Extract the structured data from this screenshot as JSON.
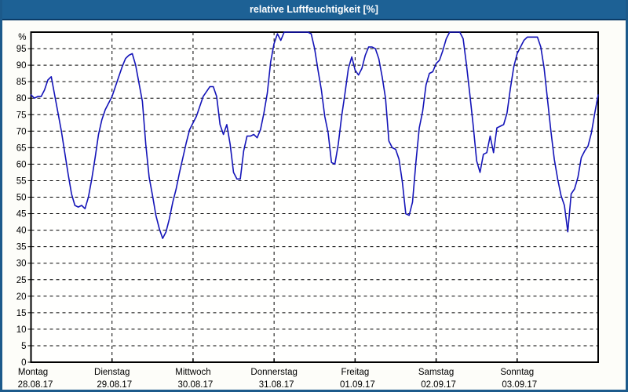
{
  "window_title": "relative Luftfeuchtigkeit [%]",
  "colors": {
    "titlebar_bg": "#1d6195",
    "titlebar_text": "#ffffff",
    "window_border": "#1c5a8b",
    "plot_bg": "#fffffe",
    "grid": "#000000",
    "line": "#1414b8"
  },
  "chart_data": {
    "type": "line",
    "title": "relative Luftfeuchtigkeit [%]",
    "ylabel": "%",
    "ylim": [
      0,
      100
    ],
    "yticks": [
      0,
      5,
      10,
      15,
      20,
      25,
      30,
      35,
      40,
      45,
      50,
      55,
      60,
      65,
      70,
      75,
      80,
      85,
      90,
      95
    ],
    "grid": "dashed",
    "legend": "none",
    "x_unit": "hours",
    "sample_interval_hours": 1,
    "days": [
      {
        "name": "Montag",
        "date": "28.08.17"
      },
      {
        "name": "Dienstag",
        "date": "29.08.17"
      },
      {
        "name": "Mittwoch",
        "date": "30.08.17"
      },
      {
        "name": "Donnerstag",
        "date": "31.08.17"
      },
      {
        "name": "Freitag",
        "date": "01.09.17"
      },
      {
        "name": "Samstag",
        "date": "02.09.17"
      },
      {
        "name": "Sonntag",
        "date": "03.09.17"
      }
    ],
    "values": [
      81,
      80,
      80.5,
      80.5,
      82.5,
      85.5,
      86.5,
      81,
      75.5,
      70,
      63.5,
      57,
      51,
      47.5,
      47,
      47.5,
      46.5,
      50,
      55.5,
      62,
      69,
      73.5,
      76.5,
      78.5,
      80.5,
      83.5,
      86.5,
      89.5,
      92,
      93,
      93.5,
      90,
      84.5,
      79,
      66,
      56,
      50.5,
      44.5,
      40.5,
      37.5,
      39.5,
      43.5,
      48.5,
      52.5,
      57.5,
      62,
      66.5,
      70.5,
      72.5,
      74.5,
      77.5,
      80.5,
      82,
      83.5,
      83.5,
      80.5,
      72,
      69,
      72,
      66,
      57.5,
      55.5,
      55.5,
      64,
      68.5,
      68.5,
      69,
      68,
      70.5,
      75.5,
      81.5,
      91,
      96.5,
      99.5,
      97.5,
      100,
      100,
      100,
      100,
      100,
      100,
      100,
      100,
      99.5,
      95,
      88.5,
      82.5,
      74.5,
      69.5,
      60.5,
      60,
      66,
      74.5,
      81.5,
      89,
      92.5,
      88.5,
      87,
      89,
      93,
      95.5,
      95.5,
      95,
      92,
      86.5,
      80,
      67,
      65,
      64.5,
      61.5,
      54.5,
      45,
      44.5,
      48.5,
      60.5,
      71,
      76,
      84,
      87.5,
      88,
      90.5,
      91.5,
      94.5,
      98,
      100,
      100,
      100,
      100,
      98,
      90,
      81,
      71.5,
      61,
      57.5,
      63,
      63.5,
      68.5,
      63.5,
      71,
      71.5,
      72,
      75.5,
      83,
      89.5,
      93.5,
      95.5,
      97.5,
      98.5,
      98.5,
      98.5,
      98.5,
      95.5,
      89,
      79.5,
      70,
      61.5,
      55.5,
      50.5,
      47.5,
      39.5,
      51,
      52.5,
      56,
      62,
      64,
      65.5,
      69.5,
      75.5,
      81
    ]
  }
}
